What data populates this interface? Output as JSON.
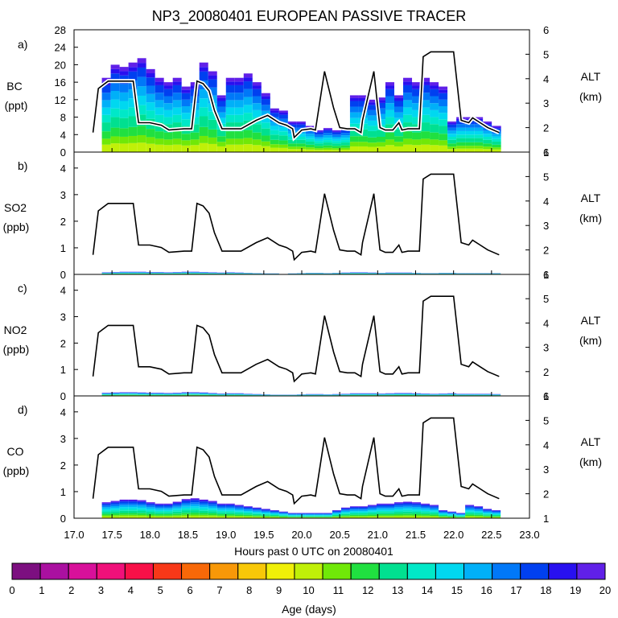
{
  "chart_data": {
    "title": "NP3_20080401 EUROPEAN PASSIVE TRACER",
    "type": "area",
    "xlabel": "Hours past 0 UTC on 20080401",
    "xlim": [
      17.0,
      23.0
    ],
    "x_ticks": [
      "17.0",
      "17.5",
      "18.0",
      "18.5",
      "19.0",
      "19.5",
      "20.0",
      "20.5",
      "21.0",
      "21.5",
      "22.0",
      "22.5",
      "23.0"
    ],
    "alt_axis": {
      "label": "ALT",
      "unit": "(km)",
      "ylim": [
        1,
        6
      ]
    },
    "altitude_km": {
      "x": [
        17.25,
        17.32,
        17.45,
        17.7,
        17.78,
        17.85,
        18.0,
        18.15,
        18.25,
        18.45,
        18.55,
        18.62,
        18.7,
        18.78,
        18.85,
        18.95,
        19.2,
        19.4,
        19.55,
        19.7,
        19.8,
        19.88,
        19.9,
        20.0,
        20.12,
        20.18,
        20.3,
        20.42,
        20.5,
        20.6,
        20.7,
        20.78,
        20.8,
        20.95,
        21.03,
        21.1,
        21.2,
        21.28,
        21.32,
        21.4,
        21.55,
        21.6,
        21.7,
        22.0,
        22.1,
        22.2,
        22.25,
        22.35,
        22.45,
        22.6
      ],
      "y": [
        1.8,
        3.6,
        3.9,
        3.9,
        3.9,
        2.2,
        2.2,
        2.1,
        1.9,
        1.95,
        1.95,
        3.9,
        3.8,
        3.5,
        2.7,
        1.95,
        1.95,
        2.3,
        2.5,
        2.2,
        2.1,
        1.95,
        1.6,
        1.9,
        1.95,
        1.9,
        4.3,
        2.8,
        2.0,
        1.95,
        1.95,
        1.8,
        2.3,
        4.3,
        2.0,
        1.9,
        1.9,
        2.2,
        1.9,
        1.95,
        1.95,
        4.9,
        5.1,
        5.1,
        2.3,
        2.2,
        2.4,
        2.2,
        2.0,
        1.8
      ]
    },
    "panels": [
      {
        "letter": "a)",
        "species": "BC",
        "unit": "(ppt)",
        "ylim": [
          0,
          28
        ],
        "y_ticks": [
          "0",
          "4",
          "8",
          "12",
          "16",
          "20",
          "24",
          "28"
        ],
        "total": [
          0,
          17,
          20,
          19.5,
          20.5,
          21.5,
          19,
          17,
          16,
          17,
          15,
          16,
          20.5,
          18.5,
          13,
          17,
          17,
          18,
          16,
          13.5,
          10,
          9.5,
          7,
          7,
          6,
          5,
          5.5,
          5,
          5.5,
          13,
          13,
          12,
          12.5,
          16,
          13,
          17,
          16,
          17,
          16,
          15,
          7,
          8,
          8,
          8,
          7,
          6,
          6
        ],
        "fractions": {
          "age_0_10": 0.1,
          "age_10_11": 0.08,
          "age_11_12": 0.1,
          "age_12_13": 0.12,
          "age_13_14": 0.1,
          "age_14_15": 0.1,
          "age_15_16": 0.1,
          "age_16_17": 0.1,
          "age_17_18": 0.1,
          "age_18_19": 0.05,
          "age_19_20": 0.05
        }
      },
      {
        "letter": "b)",
        "species": "SO2",
        "unit": "(ppb)",
        "ylim": [
          0,
          4.6
        ],
        "y_ticks": [
          "0",
          "1",
          "2",
          "3",
          "4"
        ],
        "total": [
          0,
          0.08,
          0.09,
          0.1,
          0.1,
          0.1,
          0.09,
          0.09,
          0.08,
          0.09,
          0.1,
          0.1,
          0.09,
          0.08,
          0.07,
          0.08,
          0.07,
          0.06,
          0.05,
          0.04,
          0.04,
          0.03,
          0.04,
          0.05,
          0.06,
          0.06,
          0.05,
          0.06,
          0.07,
          0.08,
          0.08,
          0.07,
          0.06,
          0.07,
          0.07,
          0.07,
          0.06,
          0.05,
          0.05,
          0.06,
          0.06,
          0.05,
          0.05,
          0.05,
          0.05,
          0.05,
          0
        ]
      },
      {
        "letter": "c)",
        "species": "NO2",
        "unit": "(ppb)",
        "ylim": [
          0,
          4.6
        ],
        "y_ticks": [
          "0",
          "1",
          "2",
          "3",
          "4"
        ],
        "total": [
          0,
          0.12,
          0.13,
          0.14,
          0.14,
          0.13,
          0.12,
          0.12,
          0.11,
          0.12,
          0.14,
          0.14,
          0.13,
          0.11,
          0.09,
          0.1,
          0.1,
          0.08,
          0.07,
          0.06,
          0.05,
          0.05,
          0.05,
          0.06,
          0.07,
          0.07,
          0.06,
          0.07,
          0.08,
          0.1,
          0.1,
          0.1,
          0.09,
          0.1,
          0.11,
          0.11,
          0.1,
          0.09,
          0.08,
          0.09,
          0.1,
          0.08,
          0.08,
          0.08,
          0.08,
          0.07,
          0
        ]
      },
      {
        "letter": "d)",
        "species": "CO",
        "unit": "(ppb)",
        "ylim": [
          0,
          4.6
        ],
        "y_ticks": [
          "0",
          "1",
          "2",
          "3",
          "4"
        ],
        "total": [
          0,
          0.6,
          0.65,
          0.7,
          0.7,
          0.68,
          0.6,
          0.55,
          0.55,
          0.62,
          0.72,
          0.75,
          0.7,
          0.65,
          0.55,
          0.55,
          0.5,
          0.45,
          0.4,
          0.35,
          0.3,
          0.25,
          0.2,
          0.2,
          0.2,
          0.2,
          0.2,
          0.3,
          0.4,
          0.45,
          0.45,
          0.5,
          0.55,
          0.55,
          0.6,
          0.62,
          0.6,
          0.55,
          0.5,
          0.3,
          0.25,
          0.2,
          0.5,
          0.45,
          0.35,
          0.3,
          0
        ]
      }
    ],
    "colorbar": {
      "label": "Age (days)",
      "tick_labels": [
        "0",
        "1",
        "2",
        "3",
        "4",
        "5",
        "6",
        "7",
        "8",
        "9",
        "10",
        "11",
        "12",
        "13",
        "14",
        "15",
        "16",
        "17",
        "18",
        "19",
        "20"
      ],
      "colors": [
        "#7c0f80",
        "#aa10a0",
        "#d8109a",
        "#f0107a",
        "#f81048",
        "#f83818",
        "#f86808",
        "#f89808",
        "#f8c808",
        "#f0f008",
        "#c0f008",
        "#70e808",
        "#20e040",
        "#00e090",
        "#00e8c8",
        "#00d8f0",
        "#00b0f8",
        "#0078f8",
        "#0040f0",
        "#2810f0",
        "#6020e8"
      ]
    }
  }
}
